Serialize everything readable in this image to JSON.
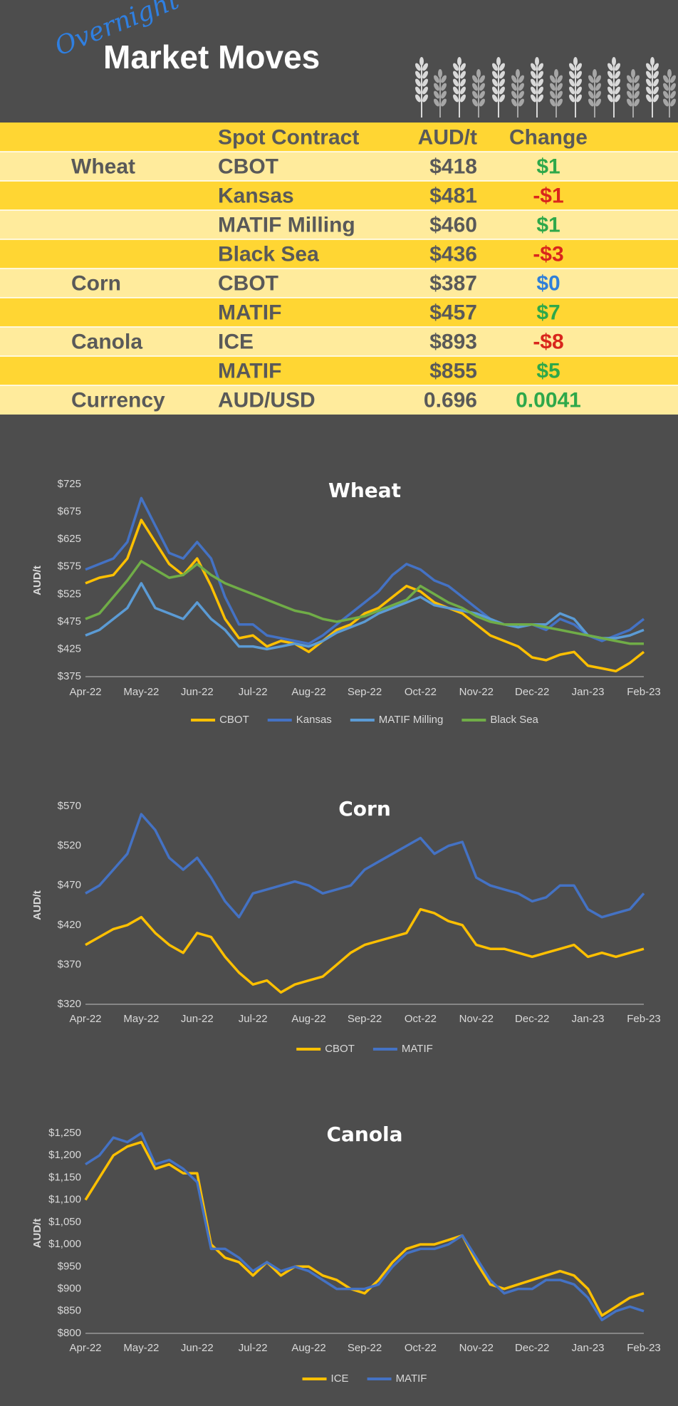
{
  "header": {
    "overnight": "Overnight",
    "title": "Market Moves"
  },
  "table": {
    "columns": [
      "Spot Contract",
      "AUD/t",
      "Change"
    ],
    "groups": [
      {
        "name": "Wheat",
        "rows": [
          {
            "contract": "CBOT",
            "price": "$418",
            "change": "$1",
            "change_color": "#2ea84a"
          },
          {
            "contract": "Kansas",
            "price": "$481",
            "change": "-$1",
            "change_color": "#d9261c"
          },
          {
            "contract": "MATIF Milling",
            "price": "$460",
            "change": "$1",
            "change_color": "#2ea84a"
          },
          {
            "contract": "Black Sea",
            "price": "$436",
            "change": "-$3",
            "change_color": "#d9261c"
          }
        ]
      },
      {
        "name": "Corn",
        "rows": [
          {
            "contract": "CBOT",
            "price": "$387",
            "change": "$0",
            "change_color": "#2f7fd9"
          },
          {
            "contract": "MATIF",
            "price": "$457",
            "change": "$7",
            "change_color": "#2ea84a"
          }
        ]
      },
      {
        "name": "Canola",
        "rows": [
          {
            "contract": "ICE",
            "price": "$893",
            "change": "-$8",
            "change_color": "#d9261c"
          },
          {
            "contract": "MATIF",
            "price": "$855",
            "change": "$5",
            "change_color": "#2ea84a"
          }
        ]
      },
      {
        "name": "Currency",
        "rows": [
          {
            "contract": "AUD/USD",
            "price": "0.696",
            "change": "0.0041",
            "change_color": "#2ea84a"
          }
        ]
      }
    ]
  },
  "chart_data": [
    {
      "type": "line",
      "title": "Wheat",
      "y_label": "AUD/t",
      "categories": [
        "Apr-22",
        null,
        null,
        null,
        "May-22",
        null,
        null,
        null,
        "Jun-22",
        null,
        null,
        null,
        "Jul-22",
        null,
        null,
        null,
        "Aug-22",
        null,
        null,
        null,
        "Sep-22",
        null,
        null,
        null,
        "Oct-22",
        null,
        null,
        null,
        "Nov-22",
        null,
        null,
        null,
        "Dec-22",
        null,
        null,
        null,
        "Jan-23",
        null,
        null,
        null,
        "Feb-23"
      ],
      "ylim": [
        375,
        725
      ],
      "yticks": [
        {
          "value": 375,
          "label": "$375"
        },
        {
          "value": 425,
          "label": "$425"
        },
        {
          "value": 475,
          "label": "$475"
        },
        {
          "value": 525,
          "label": "$525"
        },
        {
          "value": 575,
          "label": "$575"
        },
        {
          "value": 625,
          "label": "$625"
        },
        {
          "value": 675,
          "label": "$675"
        },
        {
          "value": 725,
          "label": "$725"
        }
      ],
      "legend": "bottom",
      "series": [
        {
          "name": "CBOT",
          "color": "#ffc000",
          "values": [
            545,
            555,
            560,
            590,
            660,
            620,
            580,
            560,
            590,
            540,
            480,
            445,
            450,
            430,
            440,
            435,
            420,
            440,
            460,
            470,
            490,
            500,
            520,
            540,
            530,
            510,
            500,
            490,
            470,
            450,
            440,
            430,
            410,
            405,
            415,
            420,
            395,
            390,
            385,
            400,
            420
          ]
        },
        {
          "name": "Kansas",
          "color": "#4472c4",
          "values": [
            570,
            580,
            590,
            620,
            700,
            650,
            600,
            590,
            620,
            590,
            520,
            470,
            470,
            450,
            445,
            440,
            435,
            450,
            470,
            490,
            510,
            530,
            560,
            580,
            570,
            550,
            540,
            520,
            500,
            480,
            470,
            470,
            470,
            460,
            480,
            470,
            450,
            440,
            450,
            460,
            480
          ]
        },
        {
          "name": "MATIF Milling",
          "color": "#5b9bd5",
          "values": [
            450,
            460,
            480,
            500,
            545,
            500,
            490,
            480,
            510,
            480,
            460,
            430,
            430,
            425,
            430,
            435,
            430,
            440,
            455,
            465,
            475,
            490,
            500,
            510,
            520,
            505,
            500,
            495,
            490,
            480,
            470,
            465,
            470,
            470,
            490,
            480,
            450,
            445,
            445,
            450,
            460
          ]
        },
        {
          "name": "Black Sea",
          "color": "#70ad47",
          "values": [
            480,
            490,
            520,
            550,
            585,
            570,
            555,
            560,
            580,
            560,
            545,
            535,
            525,
            515,
            505,
            495,
            490,
            480,
            475,
            480,
            485,
            495,
            505,
            515,
            540,
            525,
            510,
            500,
            485,
            475,
            470,
            470,
            470,
            465,
            460,
            455,
            450,
            445,
            440,
            435,
            435
          ]
        }
      ]
    },
    {
      "type": "line",
      "title": "Corn",
      "y_label": "AUD/t",
      "categories": [
        "Apr-22",
        null,
        null,
        null,
        "May-22",
        null,
        null,
        null,
        "Jun-22",
        null,
        null,
        null,
        "Jul-22",
        null,
        null,
        null,
        "Aug-22",
        null,
        null,
        null,
        "Sep-22",
        null,
        null,
        null,
        "Oct-22",
        null,
        null,
        null,
        "Nov-22",
        null,
        null,
        null,
        "Dec-22",
        null,
        null,
        null,
        "Jan-23",
        null,
        null,
        null,
        "Feb-23"
      ],
      "ylim": [
        320,
        570
      ],
      "yticks": [
        {
          "value": 320,
          "label": "$320"
        },
        {
          "value": 370,
          "label": "$370"
        },
        {
          "value": 420,
          "label": "$420"
        },
        {
          "value": 470,
          "label": "$470"
        },
        {
          "value": 520,
          "label": "$520"
        },
        {
          "value": 570,
          "label": "$570"
        }
      ],
      "legend": "bottom",
      "series": [
        {
          "name": "CBOT",
          "color": "#ffc000",
          "values": [
            395,
            405,
            415,
            420,
            430,
            410,
            395,
            385,
            410,
            405,
            380,
            360,
            345,
            350,
            335,
            345,
            350,
            355,
            370,
            385,
            395,
            400,
            405,
            410,
            440,
            435,
            425,
            420,
            395,
            390,
            390,
            385,
            380,
            385,
            390,
            395,
            380,
            385,
            380,
            385,
            390
          ]
        },
        {
          "name": "MATIF",
          "color": "#4472c4",
          "values": [
            460,
            470,
            490,
            510,
            560,
            540,
            505,
            490,
            505,
            480,
            450,
            430,
            460,
            465,
            470,
            475,
            470,
            460,
            465,
            470,
            490,
            500,
            510,
            520,
            530,
            510,
            520,
            525,
            480,
            470,
            465,
            460,
            450,
            455,
            470,
            470,
            440,
            430,
            435,
            440,
            460
          ]
        }
      ]
    },
    {
      "type": "line",
      "title": "Canola",
      "y_label": "AUD/t",
      "categories": [
        "Apr-22",
        null,
        null,
        null,
        "May-22",
        null,
        null,
        null,
        "Jun-22",
        null,
        null,
        null,
        "Jul-22",
        null,
        null,
        null,
        "Aug-22",
        null,
        null,
        null,
        "Sep-22",
        null,
        null,
        null,
        "Oct-22",
        null,
        null,
        null,
        "Nov-22",
        null,
        null,
        null,
        "Dec-22",
        null,
        null,
        null,
        "Jan-23",
        null,
        null,
        null,
        "Feb-23"
      ],
      "ylim": [
        800,
        1250
      ],
      "yticks": [
        {
          "value": 800,
          "label": "$800"
        },
        {
          "value": 850,
          "label": "$850"
        },
        {
          "value": 900,
          "label": "$900"
        },
        {
          "value": 950,
          "label": "$950"
        },
        {
          "value": 1000,
          "label": "$1,000"
        },
        {
          "value": 1050,
          "label": "$1,050"
        },
        {
          "value": 1100,
          "label": "$1,100"
        },
        {
          "value": 1150,
          "label": "$1,150"
        },
        {
          "value": 1200,
          "label": "$1,200"
        },
        {
          "value": 1250,
          "label": "$1,250"
        }
      ],
      "legend": "bottom",
      "series": [
        {
          "name": "ICE",
          "color": "#ffc000",
          "values": [
            1100,
            1150,
            1200,
            1220,
            1230,
            1170,
            1180,
            1160,
            1160,
            1000,
            970,
            960,
            930,
            960,
            930,
            950,
            950,
            930,
            920,
            900,
            890,
            920,
            960,
            990,
            1000,
            1000,
            1010,
            1020,
            960,
            910,
            900,
            910,
            920,
            930,
            940,
            930,
            900,
            840,
            860,
            880,
            890
          ]
        },
        {
          "name": "MATIF",
          "color": "#4472c4",
          "values": [
            1180,
            1200,
            1240,
            1230,
            1250,
            1180,
            1190,
            1170,
            1140,
            990,
            990,
            970,
            940,
            960,
            940,
            950,
            940,
            920,
            900,
            900,
            900,
            910,
            950,
            980,
            990,
            990,
            1000,
            1020,
            970,
            920,
            890,
            900,
            900,
            920,
            920,
            910,
            880,
            830,
            850,
            860,
            850
          ]
        }
      ]
    }
  ]
}
